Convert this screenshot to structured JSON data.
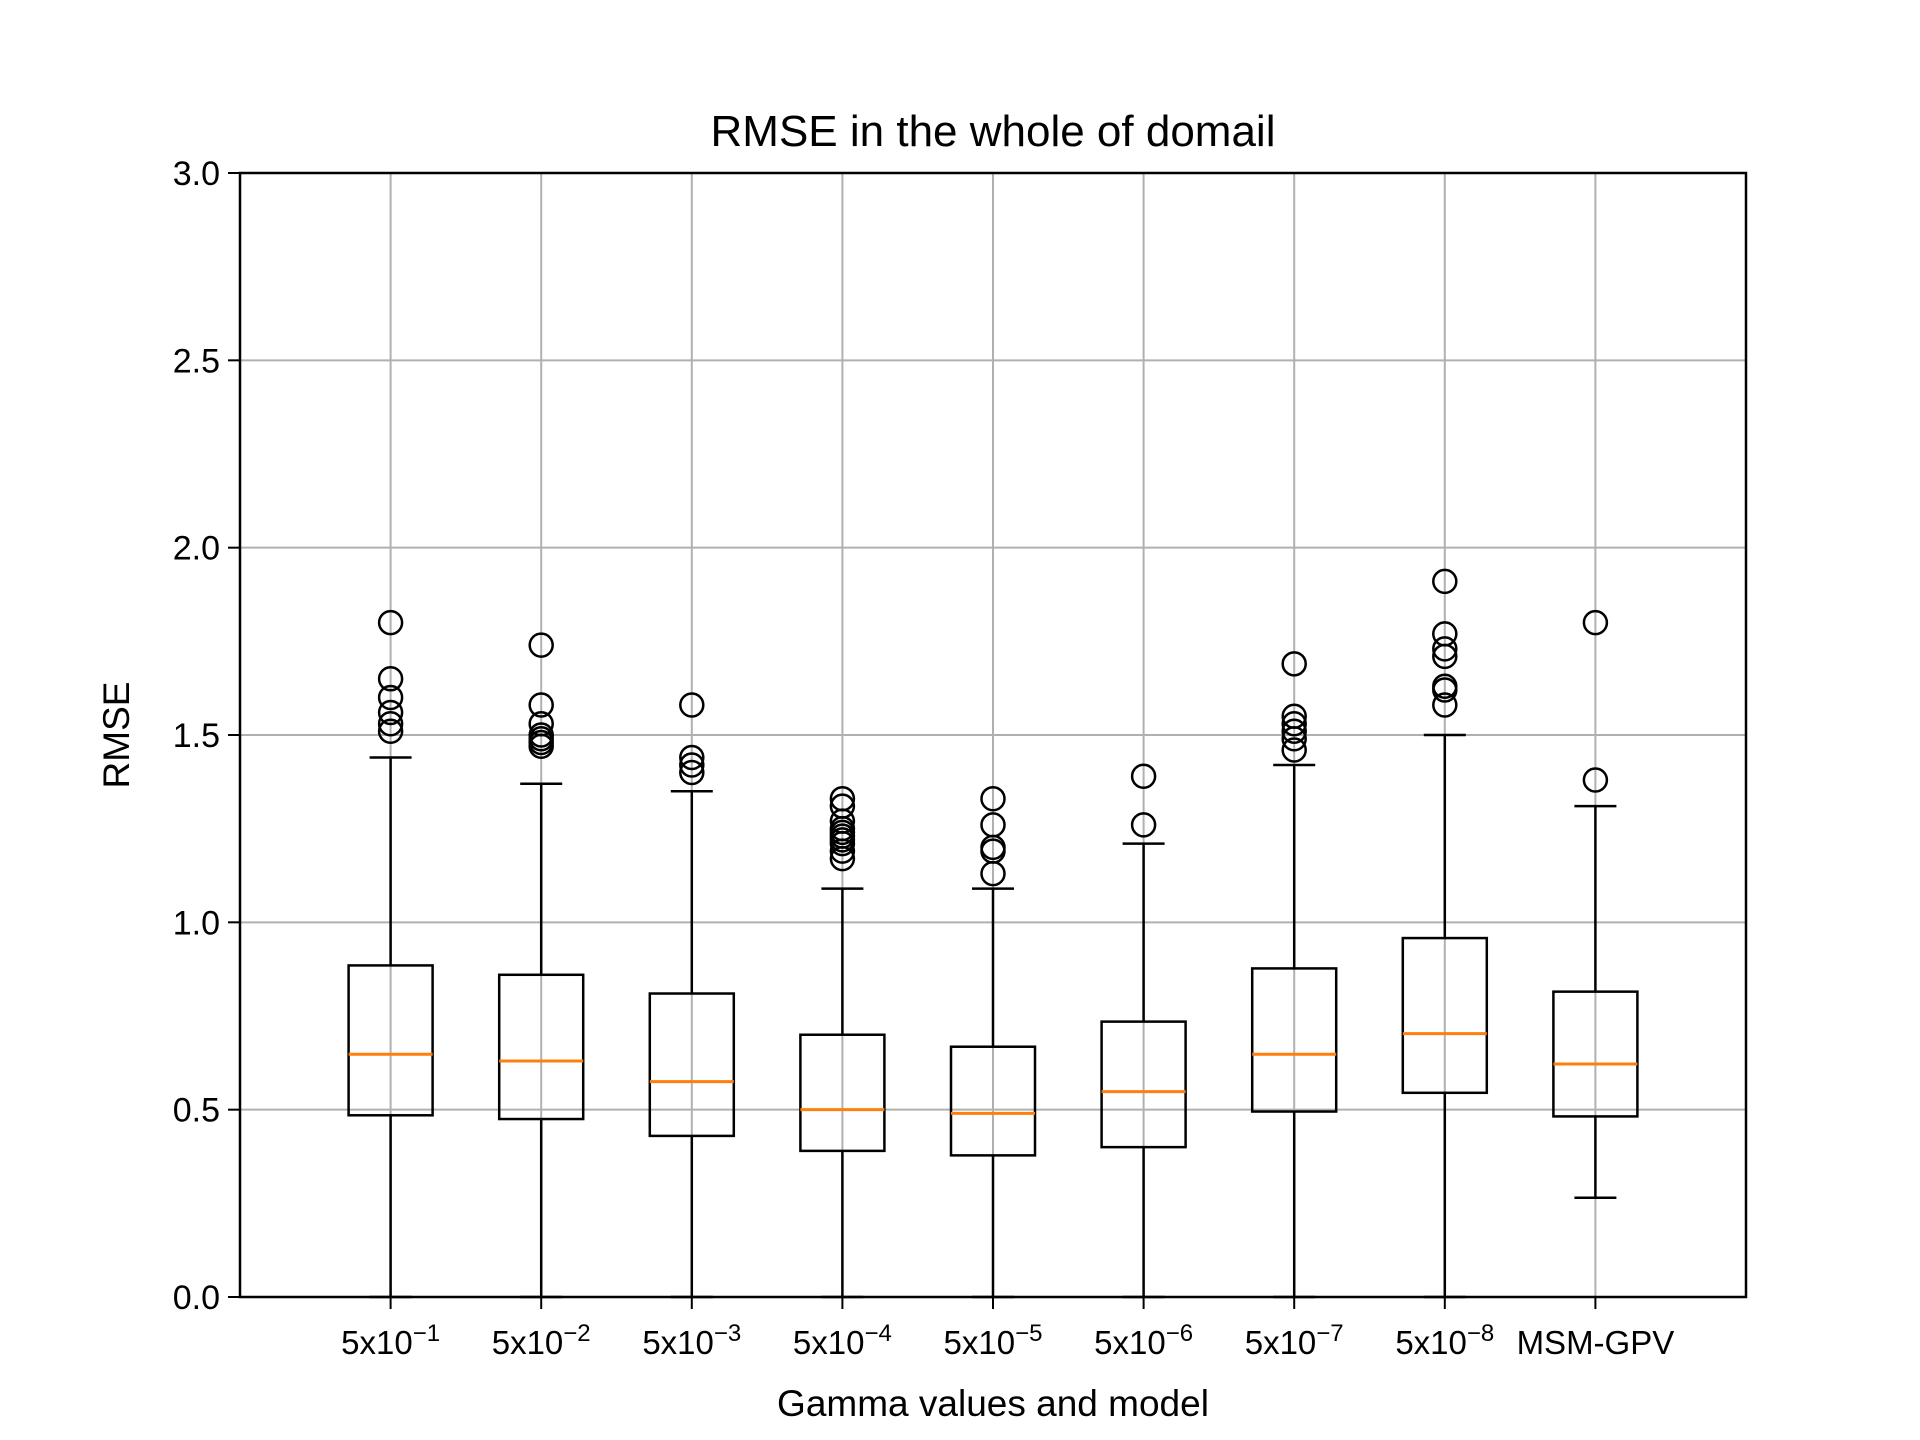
{
  "chart_data": {
    "type": "boxplot",
    "title": "RMSE in the whole of domail",
    "xlabel": "Gamma values and model",
    "ylabel": "RMSE",
    "ylim": [
      0,
      3.0
    ],
    "yticks": [
      "0.0",
      "0.5",
      "1.0",
      "1.5",
      "2.0",
      "2.5",
      "3.0"
    ],
    "grid": true,
    "colors": {
      "box": "#000000",
      "median": "#ff7f0e",
      "grid": "#b0b0b0"
    },
    "boxes": [
      {
        "label": "5x10",
        "exp": "−1",
        "whislo": 0.0,
        "q1": 0.485,
        "med": 0.648,
        "q3": 0.885,
        "whishi": 1.44,
        "fliers": [
          1.51,
          1.53,
          1.56,
          1.6,
          1.65,
          1.8
        ]
      },
      {
        "label": "5x10",
        "exp": "−2",
        "whislo": 0.0,
        "q1": 0.475,
        "med": 0.63,
        "q3": 0.86,
        "whishi": 1.37,
        "fliers": [
          1.47,
          1.48,
          1.49,
          1.5,
          1.53,
          1.58,
          1.74
        ]
      },
      {
        "label": "5x10",
        "exp": "−3",
        "whislo": 0.0,
        "q1": 0.43,
        "med": 0.575,
        "q3": 0.81,
        "whishi": 1.35,
        "fliers": [
          1.4,
          1.42,
          1.44,
          1.58
        ]
      },
      {
        "label": "5x10",
        "exp": "−4",
        "whislo": 0.0,
        "q1": 0.39,
        "med": 0.5,
        "q3": 0.7,
        "whishi": 1.09,
        "fliers": [
          1.17,
          1.19,
          1.21,
          1.22,
          1.23,
          1.24,
          1.25,
          1.27,
          1.31,
          1.33
        ]
      },
      {
        "label": "5x10",
        "exp": "−5",
        "whislo": 0.0,
        "q1": 0.378,
        "med": 0.49,
        "q3": 0.668,
        "whishi": 1.09,
        "fliers": [
          1.13,
          1.19,
          1.2,
          1.26,
          1.33
        ]
      },
      {
        "label": "5x10",
        "exp": "−6",
        "whislo": 0.0,
        "q1": 0.4,
        "med": 0.548,
        "q3": 0.735,
        "whishi": 1.21,
        "fliers": [
          1.26,
          1.39
        ]
      },
      {
        "label": "5x10",
        "exp": "−7",
        "whislo": 0.0,
        "q1": 0.495,
        "med": 0.648,
        "q3": 0.877,
        "whishi": 1.42,
        "fliers": [
          1.46,
          1.49,
          1.51,
          1.53,
          1.55,
          1.69
        ]
      },
      {
        "label": "5x10",
        "exp": "−8",
        "whislo": 0.0,
        "q1": 0.545,
        "med": 0.703,
        "q3": 0.958,
        "whishi": 1.5,
        "fliers": [
          1.58,
          1.62,
          1.63,
          1.71,
          1.73,
          1.77,
          1.91
        ]
      },
      {
        "label": "MSM-GPV",
        "exp": "",
        "whislo": 0.265,
        "q1": 0.482,
        "med": 0.622,
        "q3": 0.815,
        "whishi": 1.31,
        "fliers": [
          1.38,
          1.8
        ]
      }
    ]
  }
}
